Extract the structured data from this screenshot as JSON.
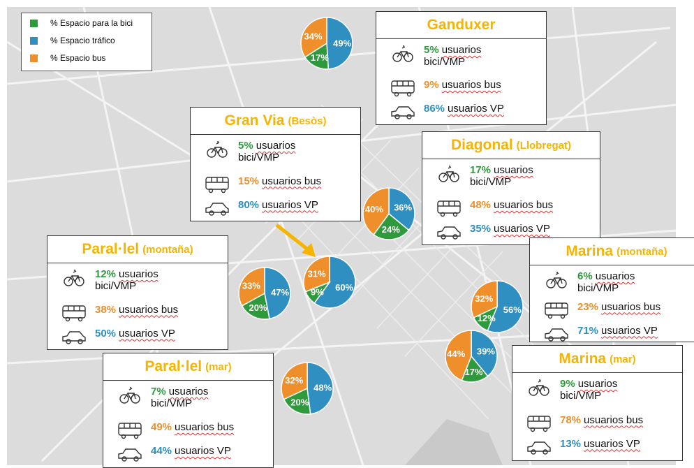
{
  "legend": [
    {
      "name": "% Espacio para la bici",
      "color": "#2f9a3c"
    },
    {
      "name": "% Espacio tráfico",
      "color": "#2e8fc0"
    },
    {
      "name": "% Espacio bus",
      "color": "#ee8f2c"
    }
  ],
  "pies": [
    {
      "values": [
        17,
        49,
        34
      ],
      "value_labels": [
        "17%",
        "49%",
        "34%"
      ]
    },
    {
      "values": [
        24,
        36,
        40
      ],
      "value_labels": [
        "24%",
        "36%",
        "40%"
      ]
    },
    {
      "values": [
        9,
        60,
        31
      ],
      "value_labels": [
        "9%",
        "60%",
        "31%"
      ]
    },
    {
      "values": [
        20,
        47,
        33
      ],
      "value_labels": [
        "20%",
        "47%",
        "33%"
      ]
    },
    {
      "values": [
        12,
        56,
        32
      ],
      "value_labels": [
        "12%",
        "56%",
        "32%"
      ]
    },
    {
      "values": [
        17,
        39,
        44
      ],
      "value_labels": [
        "17%",
        "39%",
        "44%"
      ]
    },
    {
      "values": [
        20,
        48,
        32
      ],
      "value_labels": [
        "20%",
        "48%",
        "32%"
      ]
    }
  ],
  "boxes": [
    {
      "title": "Ganduxer",
      "rows": [
        {
          "pct": "5%",
          "text": "usuarios",
          "text2": "bici/VMP"
        },
        {
          "pct": "9%",
          "text": "usuarios bus"
        },
        {
          "pct": "86%",
          "text": "usuarios VP"
        }
      ]
    },
    {
      "title": "Gran Via",
      "subtitle": "(Besòs)",
      "rows": [
        {
          "pct": "5%",
          "text": "usuarios",
          "text2": "bici/VMP"
        },
        {
          "pct": "15%",
          "text": "usuarios bus"
        },
        {
          "pct": "80%",
          "text": "usuarios VP"
        }
      ]
    },
    {
      "title": "Diagonal",
      "subtitle": "(Llobregat)",
      "rows": [
        {
          "pct": "17%",
          "text": "usuarios",
          "text2": "bici/VMP"
        },
        {
          "pct": "48%",
          "text": "usuarios bus"
        },
        {
          "pct": "35%",
          "text": "usuarios VP"
        }
      ]
    },
    {
      "title": "Paral·lel",
      "subtitle": "(montaña)",
      "rows": [
        {
          "pct": "12%",
          "text": "usuarios",
          "text2": "bici/VMP"
        },
        {
          "pct": "38%",
          "text": "usuarios bus"
        },
        {
          "pct": "50%",
          "text": "usuarios VP"
        }
      ]
    },
    {
      "title": "Marina",
      "subtitle": "(montaña)",
      "rows": [
        {
          "pct": "6%",
          "text": "usuarios",
          "text2": "bici/VMP"
        },
        {
          "pct": "23%",
          "text": "usuarios bus"
        },
        {
          "pct": "71%",
          "text": "usuarios VP"
        }
      ]
    },
    {
      "title": "Paral·lel",
      "subtitle": "(mar)",
      "rows": [
        {
          "pct": "7%",
          "text": "usuarios",
          "text2": "bici/VMP"
        },
        {
          "pct": "49%",
          "text": "usuarios bus"
        },
        {
          "pct": "44%",
          "text": "usuarios VP"
        }
      ]
    },
    {
      "title": "Marina",
      "subtitle": "(mar)",
      "rows": [
        {
          "pct": "9%",
          "text": "usuarios",
          "text2": "bici/VMP"
        },
        {
          "pct": "78%",
          "text": "usuarios bus"
        },
        {
          "pct": "13%",
          "text": "usuarios VP"
        }
      ]
    }
  ]
}
